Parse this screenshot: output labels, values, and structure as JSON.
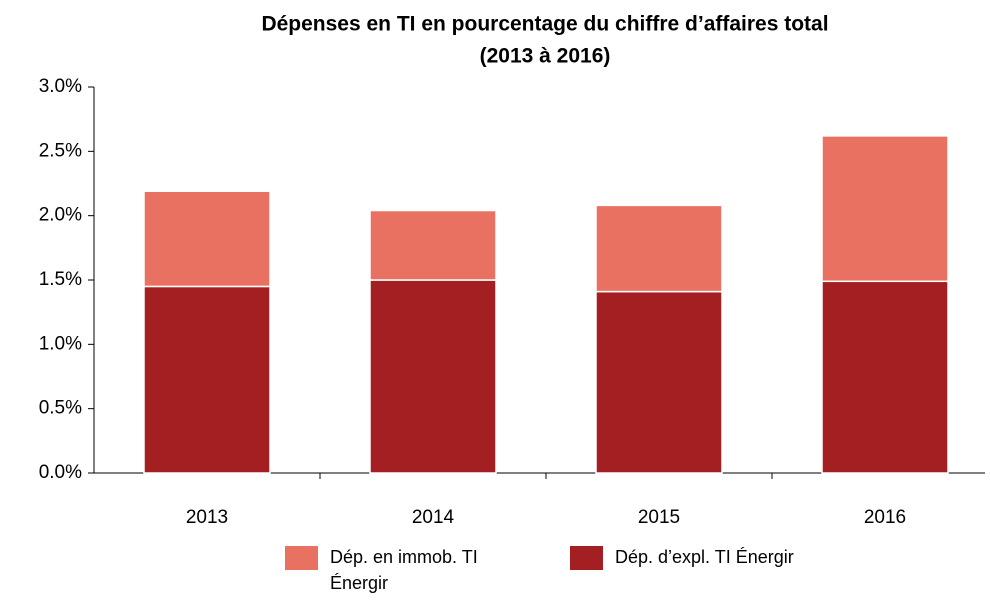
{
  "chart_data": {
    "type": "stacked_bar",
    "title": "Dépenses en TI en pourcentage du chiffre d’affaires total",
    "subtitle": "(2013 à 2016)",
    "categories": [
      "2013",
      "2014",
      "2015",
      "2016"
    ],
    "series": [
      {
        "name": "Dép. en immob. TI Énergir",
        "color": "#e87162",
        "values": [
          0.74,
          0.54,
          0.67,
          1.13
        ]
      },
      {
        "name": "Dép. d’expl. TI Énergir",
        "color": "#a31f22",
        "values": [
          1.45,
          1.5,
          1.41,
          1.49
        ]
      }
    ],
    "ylim": [
      0,
      3
    ],
    "yticks": [
      {
        "value": 0,
        "label": "0.0%"
      },
      {
        "value": 0.5,
        "label": "0.5%"
      },
      {
        "value": 1,
        "label": "1.0%"
      },
      {
        "value": 1.5,
        "label": "1.5%"
      },
      {
        "value": 2,
        "label": "2.0%"
      },
      {
        "value": 2.5,
        "label": "2.5%"
      },
      {
        "value": 3,
        "label": "3.0%"
      }
    ]
  }
}
